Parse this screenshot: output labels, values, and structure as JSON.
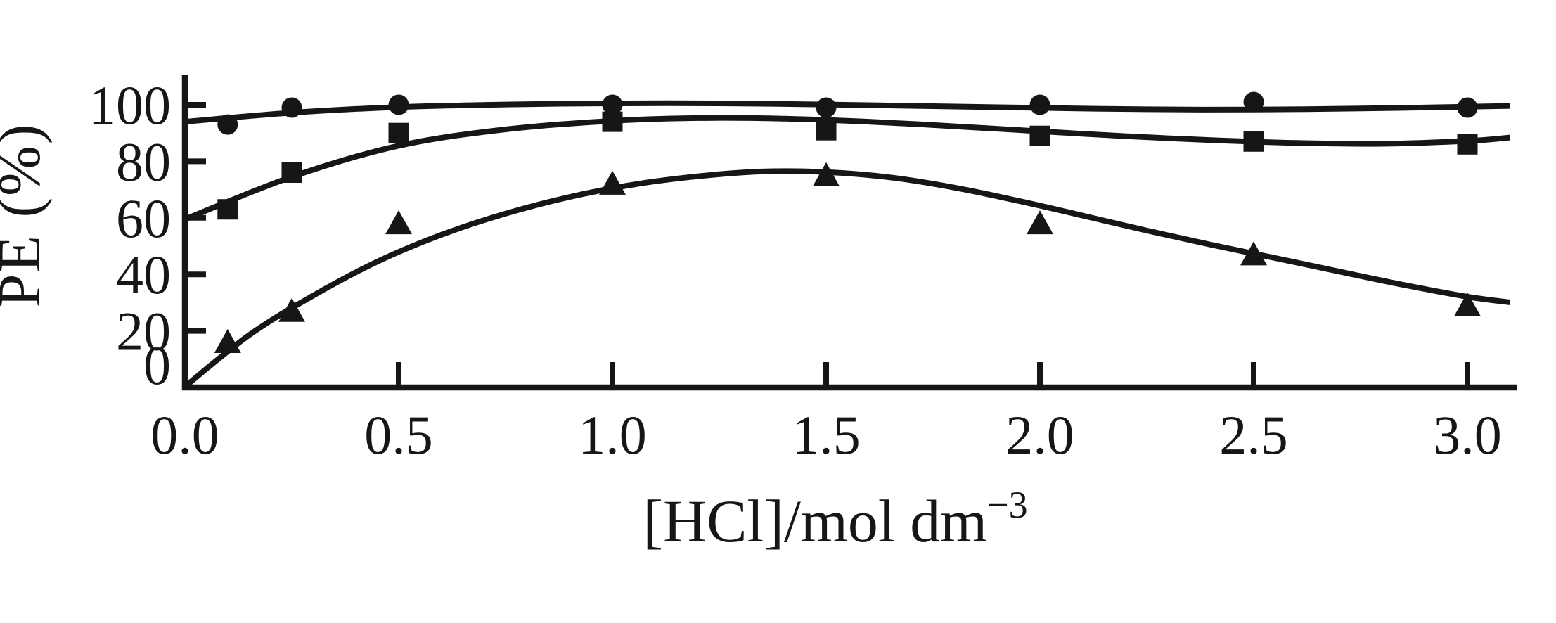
{
  "figure": {
    "background": "#ffffff",
    "ink_color": "#161616"
  },
  "chart_data": {
    "type": "line",
    "title": "",
    "xlabel": "[HCl]/mol dm−3",
    "xlabel_main": "[HCl]/mol dm",
    "xlabel_sup": "−3",
    "ylabel": "PE (%)",
    "xlim": [
      0,
      3.1
    ],
    "ylim": [
      0,
      110
    ],
    "grid": false,
    "legend": "none",
    "x_ticks": {
      "values": [
        0,
        0.5,
        1.0,
        1.5,
        2.0,
        2.5,
        3.0
      ],
      "labels": [
        "0.0",
        "0.5",
        "1.0",
        "1.5",
        "2.0",
        "2.5",
        "3.0"
      ]
    },
    "y_ticks": {
      "values": [
        0,
        20,
        40,
        60,
        80,
        100
      ],
      "labels": [
        "0",
        "20",
        "40",
        "60",
        "80",
        "100"
      ]
    },
    "x": [
      0.1,
      0.25,
      0.5,
      1.0,
      1.5,
      2.0,
      2.5,
      3.0
    ],
    "series": [
      {
        "name": "circle-series",
        "marker": "circle",
        "values": [
          93,
          99,
          100,
          100,
          99,
          100,
          101,
          99
        ],
        "curve": [
          [
            0,
            94
          ],
          [
            0.25,
            97.2
          ],
          [
            0.5,
            99.2
          ],
          [
            0.75,
            100.1
          ],
          [
            1.0,
            100.5
          ],
          [
            1.25,
            100.5
          ],
          [
            1.5,
            100.1
          ],
          [
            1.75,
            99.5
          ],
          [
            2.0,
            98.9
          ],
          [
            2.25,
            98.4
          ],
          [
            2.5,
            98.3
          ],
          [
            2.75,
            98.7
          ],
          [
            3.0,
            99.3
          ],
          [
            3.1,
            99.6
          ]
        ]
      },
      {
        "name": "square-series",
        "marker": "square",
        "values": [
          63,
          76,
          90,
          94,
          91,
          89,
          87,
          86
        ],
        "curve": [
          [
            0,
            59.5
          ],
          [
            0.25,
            74.5
          ],
          [
            0.5,
            85.5
          ],
          [
            0.75,
            91.3
          ],
          [
            1.0,
            94.3
          ],
          [
            1.2,
            95.3
          ],
          [
            1.4,
            95.1
          ],
          [
            1.6,
            94
          ],
          [
            1.8,
            92.4
          ],
          [
            2.0,
            90.6
          ],
          [
            2.2,
            88.9
          ],
          [
            2.4,
            87.5
          ],
          [
            2.6,
            86.5
          ],
          [
            2.8,
            86.2
          ],
          [
            3.0,
            87.2
          ],
          [
            3.1,
            88.4
          ]
        ]
      },
      {
        "name": "triangle-series",
        "marker": "triangle",
        "values": [
          16,
          27,
          58,
          72,
          75,
          58,
          47,
          29
        ],
        "curve": [
          [
            0,
            0.3
          ],
          [
            0.15,
            18.5
          ],
          [
            0.3,
            32.5
          ],
          [
            0.45,
            44.5
          ],
          [
            0.6,
            54
          ],
          [
            0.75,
            61.5
          ],
          [
            0.9,
            67.4
          ],
          [
            1.05,
            71.8
          ],
          [
            1.2,
            74.7
          ],
          [
            1.35,
            76.4
          ],
          [
            1.5,
            76.2
          ],
          [
            1.65,
            74.3
          ],
          [
            1.8,
            70.7
          ],
          [
            1.95,
            66
          ],
          [
            2.1,
            60.8
          ],
          [
            2.25,
            55.5
          ],
          [
            2.4,
            50.5
          ],
          [
            2.55,
            45.8
          ],
          [
            2.7,
            41
          ],
          [
            2.85,
            36.3
          ],
          [
            3.0,
            32.1
          ],
          [
            3.1,
            30.1
          ]
        ]
      }
    ]
  }
}
